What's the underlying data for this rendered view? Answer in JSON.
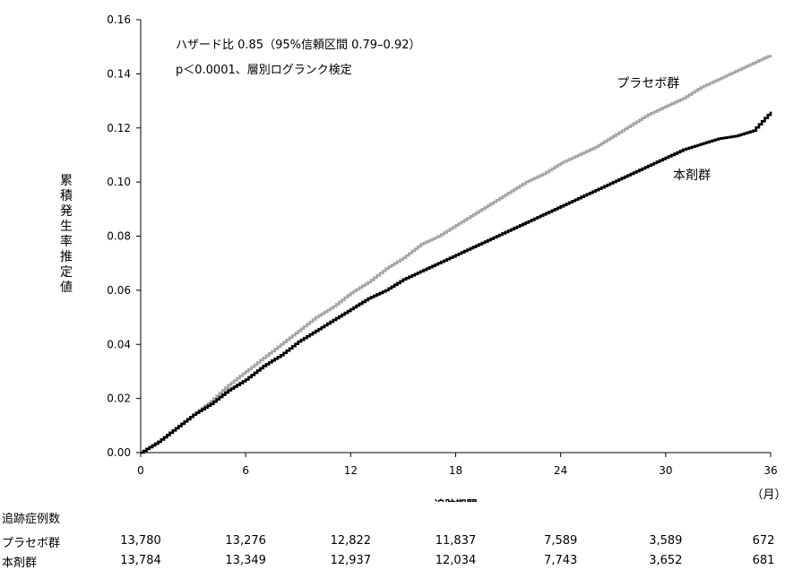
{
  "chart_data": {
    "type": "line",
    "title": "",
    "xlabel": "追跡期間",
    "x_unit": "（月）",
    "ylabel": "累積発生率推定値",
    "xlim": [
      0,
      36
    ],
    "ylim": [
      0,
      0.16
    ],
    "x_ticks": [
      "0",
      "6",
      "12",
      "18",
      "24",
      "30",
      "36"
    ],
    "y_ticks": [
      "0.00",
      "0.02",
      "0.04",
      "0.06",
      "0.08",
      "0.10",
      "0.12",
      "0.14",
      "0.16"
    ],
    "grid": false,
    "annotations": [
      "ハザード比 0.85（95%信頼区間 0.79–0.92）",
      "p＜0.0001、層別ログランク検定"
    ],
    "series": [
      {
        "name": "プラセボ群",
        "color": "#a6a6a6",
        "x": [
          0,
          1,
          2,
          3,
          4,
          5,
          6,
          7,
          8,
          9,
          10,
          11,
          12,
          13,
          14,
          15,
          16,
          17,
          18,
          19,
          20,
          21,
          22,
          23,
          24,
          25,
          26,
          27,
          28,
          29,
          30,
          31,
          32,
          33,
          34,
          35,
          36
        ],
        "y": [
          0.0,
          0.004,
          0.009,
          0.014,
          0.019,
          0.025,
          0.03,
          0.035,
          0.04,
          0.045,
          0.05,
          0.054,
          0.059,
          0.063,
          0.068,
          0.072,
          0.077,
          0.08,
          0.084,
          0.088,
          0.092,
          0.096,
          0.1,
          0.103,
          0.107,
          0.11,
          0.113,
          0.117,
          0.121,
          0.125,
          0.128,
          0.131,
          0.135,
          0.138,
          0.141,
          0.144,
          0.147
        ]
      },
      {
        "name": "本剤群",
        "color": "#000000",
        "x": [
          0,
          1,
          2,
          3,
          4,
          5,
          6,
          7,
          8,
          9,
          10,
          11,
          12,
          13,
          14,
          15,
          16,
          17,
          18,
          19,
          20,
          21,
          22,
          23,
          24,
          25,
          26,
          27,
          28,
          29,
          30,
          31,
          32,
          33,
          34,
          35,
          36
        ],
        "y": [
          0.0,
          0.004,
          0.009,
          0.014,
          0.018,
          0.023,
          0.027,
          0.032,
          0.036,
          0.041,
          0.045,
          0.049,
          0.053,
          0.057,
          0.06,
          0.064,
          0.067,
          0.07,
          0.073,
          0.076,
          0.079,
          0.082,
          0.085,
          0.088,
          0.091,
          0.094,
          0.097,
          0.1,
          0.103,
          0.106,
          0.109,
          0.112,
          0.114,
          0.116,
          0.117,
          0.119,
          0.126
        ]
      }
    ],
    "series_labels": [
      {
        "text": "プラセボ群",
        "x": 29,
        "y": 0.135
      },
      {
        "text": "本剤群",
        "x": 31.5,
        "y": 0.101
      }
    ]
  },
  "risk_table": {
    "title": "追跡症例数",
    "rows": [
      {
        "label": "プラセボ群",
        "values": [
          "13,780",
          "13,276",
          "12,822",
          "11,837",
          "7,589",
          "3,589",
          "672"
        ]
      },
      {
        "label": "本剤群",
        "values": [
          "13,784",
          "13,349",
          "12,937",
          "12,034",
          "7,743",
          "3,652",
          "681"
        ]
      }
    ]
  }
}
